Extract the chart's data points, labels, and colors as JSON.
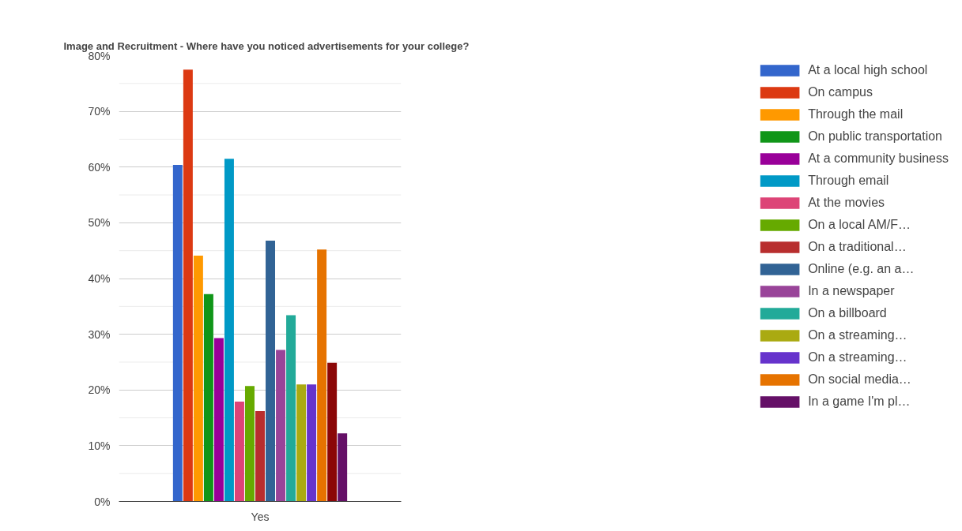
{
  "chart_data": {
    "type": "bar",
    "title": "Image and Recruitment - Where have you noticed advertisements for your college?",
    "categories": [
      "Yes"
    ],
    "series": [
      {
        "name": "At a local high school",
        "color": "#3366cc",
        "values": [
          60.4
        ]
      },
      {
        "name": "On campus",
        "color": "#dc3912",
        "values": [
          77.5
        ]
      },
      {
        "name": "Through the mail",
        "color": "#ff9900",
        "values": [
          44.1
        ]
      },
      {
        "name": "On public transportation",
        "color": "#109618",
        "values": [
          37.2
        ]
      },
      {
        "name": "At a community business",
        "color": "#990099",
        "values": [
          29.3
        ]
      },
      {
        "name": "Through email",
        "color": "#0099c6",
        "values": [
          61.5
        ]
      },
      {
        "name": "At the movies",
        "color": "#dd4477",
        "values": [
          17.9
        ]
      },
      {
        "name": "On a local AM/F…",
        "color": "#66aa00",
        "values": [
          20.7
        ]
      },
      {
        "name": "On a traditional…",
        "color": "#b82e2e",
        "values": [
          16.2
        ]
      },
      {
        "name": "Online (e.g. an a…",
        "color": "#316395",
        "values": [
          46.8
        ]
      },
      {
        "name": "In a newspaper",
        "color": "#994499",
        "values": [
          27.2
        ]
      },
      {
        "name": "On a billboard",
        "color": "#22aa99",
        "values": [
          33.4
        ]
      },
      {
        "name": "On a streaming…",
        "color": "#aaaa11",
        "values": [
          21.0
        ]
      },
      {
        "name": "On a streaming…",
        "color": "#6633cc",
        "values": [
          21.0
        ]
      },
      {
        "name": "On social media…",
        "color": "#e67300",
        "values": [
          45.2
        ]
      },
      {
        "color": "#8b0707",
        "values": [
          24.9
        ]
      },
      {
        "name": "In a game I'm pl…",
        "color": "#651067",
        "values": [
          12.2
        ]
      }
    ],
    "ylim": [
      0,
      80
    ],
    "yticks": [
      {
        "value": 0,
        "label": "0%"
      },
      {
        "value": 10,
        "label": "10%"
      },
      {
        "value": 20,
        "label": "20%"
      },
      {
        "value": 30,
        "label": "30%"
      },
      {
        "value": 40,
        "label": "40%"
      },
      {
        "value": 50,
        "label": "50%"
      },
      {
        "value": 60,
        "label": "60%"
      },
      {
        "value": 70,
        "label": "70%"
      },
      {
        "value": 80,
        "label": "80%"
      }
    ],
    "grid": "y",
    "legend": "right"
  }
}
